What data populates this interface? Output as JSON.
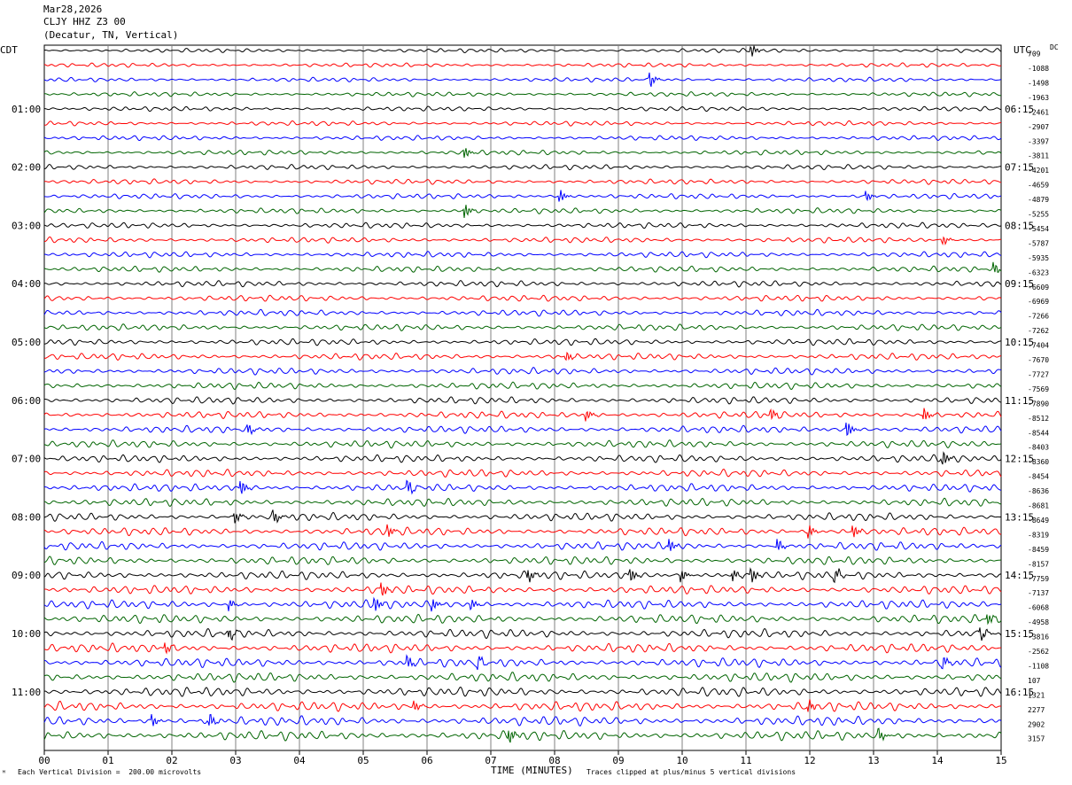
{
  "header": {
    "date": "Mar28,2026",
    "station": "CLJY HHZ Z3 00",
    "location": "(Decatur, TN, Vertical)"
  },
  "left_tz": "CDT",
  "right_tz": "UTC",
  "dc_label": "DC",
  "footer": {
    "scale_note": "Each Vertical Division =  200.00 microvolts",
    "clip_note": "Traces clipped at plus/minus 5 vertical divisions",
    "corner_mark": "ᴹ"
  },
  "colors": {
    "cycle": [
      "#000000",
      "#ff0000",
      "#0000ff",
      "#006400"
    ],
    "grid": "#808080"
  },
  "chart_data": {
    "type": "line",
    "xlabel": "TIME (MINUTES)",
    "x_ticks": [
      "00",
      "01",
      "02",
      "03",
      "04",
      "05",
      "06",
      "07",
      "08",
      "09",
      "10",
      "11",
      "12",
      "13",
      "14",
      "15"
    ],
    "xlim": [
      0,
      15
    ],
    "left_hour_labels": [
      "01:00",
      "02:00",
      "03:00",
      "04:00",
      "05:00",
      "06:00",
      "07:00",
      "08:00",
      "09:00",
      "10:00",
      "11:00"
    ],
    "right_hour_labels": [
      "06:15",
      "07:15",
      "08:15",
      "09:15",
      "10:15",
      "11:15",
      "12:15",
      "13:15",
      "14:15",
      "15:15",
      "16:15"
    ],
    "hour_label_rows": [
      4,
      8,
      12,
      16,
      20,
      24,
      28,
      32,
      36,
      40,
      44
    ],
    "dc_offsets": [
      "709",
      "-1088",
      "-1498",
      "-1963",
      "-2461",
      "-2907",
      "-3397",
      "-3811",
      "-4201",
      "-4659",
      "-4879",
      "-5255",
      "-5454",
      "-5787",
      "-5935",
      "-6323",
      "-6609",
      "-6969",
      "-7266",
      "-7262",
      "-7404",
      "-7670",
      "-7727",
      "-7569",
      "-7890",
      "-8512",
      "-8544",
      "-8403",
      "-8360",
      "-8454",
      "-8636",
      "-8681",
      "-8649",
      "-8319",
      "-8459",
      "-8157",
      "-7759",
      "-7137",
      "-6068",
      "-4958",
      "-3816",
      "-2562",
      "-1108",
      "107",
      "1321",
      "2277",
      "2902",
      "3157"
    ],
    "events": [
      {
        "row": 0,
        "minute": 11.1,
        "amp": 1.5
      },
      {
        "row": 2,
        "minute": 9.5,
        "amp": 2
      },
      {
        "row": 7,
        "minute": 6.6,
        "amp": 1.5
      },
      {
        "row": 10,
        "minute": 8.1,
        "amp": 1.5
      },
      {
        "row": 10,
        "minute": 12.9,
        "amp": 1.2
      },
      {
        "row": 11,
        "minute": 6.6,
        "amp": 2
      },
      {
        "row": 13,
        "minute": 14.1,
        "amp": 1.2
      },
      {
        "row": 15,
        "minute": 14.9,
        "amp": 1.5
      },
      {
        "row": 21,
        "minute": 8.2,
        "amp": 1.2
      },
      {
        "row": 25,
        "minute": 8.5,
        "amp": 1.5
      },
      {
        "row": 25,
        "minute": 11.4,
        "amp": 1.5
      },
      {
        "row": 25,
        "minute": 13.8,
        "amp": 1.8
      },
      {
        "row": 26,
        "minute": 3.2,
        "amp": 1.5
      },
      {
        "row": 26,
        "minute": 12.6,
        "amp": 2
      },
      {
        "row": 28,
        "minute": 14.1,
        "amp": 2
      },
      {
        "row": 30,
        "minute": 3.1,
        "amp": 1.8
      },
      {
        "row": 30,
        "minute": 5.7,
        "amp": 2
      },
      {
        "row": 32,
        "minute": 3.0,
        "amp": 1.5
      },
      {
        "row": 32,
        "minute": 3.6,
        "amp": 2
      },
      {
        "row": 33,
        "minute": 5.4,
        "amp": 1.5
      },
      {
        "row": 33,
        "minute": 12.0,
        "amp": 1.5
      },
      {
        "row": 33,
        "minute": 12.7,
        "amp": 1.5
      },
      {
        "row": 34,
        "minute": 9.8,
        "amp": 2
      },
      {
        "row": 34,
        "minute": 11.5,
        "amp": 1.8
      },
      {
        "row": 36,
        "minute": 7.6,
        "amp": 1.8
      },
      {
        "row": 36,
        "minute": 9.2,
        "amp": 1.8
      },
      {
        "row": 36,
        "minute": 10.0,
        "amp": 1.5
      },
      {
        "row": 36,
        "minute": 10.8,
        "amp": 1.5
      },
      {
        "row": 36,
        "minute": 11.1,
        "amp": 2
      },
      {
        "row": 36,
        "minute": 12.4,
        "amp": 1.8
      },
      {
        "row": 37,
        "minute": 5.3,
        "amp": 1.8
      },
      {
        "row": 38,
        "minute": 2.9,
        "amp": 1.5
      },
      {
        "row": 38,
        "minute": 5.2,
        "amp": 1.8
      },
      {
        "row": 38,
        "minute": 6.1,
        "amp": 1.5
      },
      {
        "row": 38,
        "minute": 6.7,
        "amp": 1.5
      },
      {
        "row": 39,
        "minute": 14.8,
        "amp": 1.5
      },
      {
        "row": 40,
        "minute": 2.9,
        "amp": 1.5
      },
      {
        "row": 40,
        "minute": 14.7,
        "amp": 1.5
      },
      {
        "row": 41,
        "minute": 1.9,
        "amp": 1.5
      },
      {
        "row": 42,
        "minute": 5.7,
        "amp": 1.8
      },
      {
        "row": 42,
        "minute": 6.8,
        "amp": 1.5
      },
      {
        "row": 42,
        "minute": 14.1,
        "amp": 1.5
      },
      {
        "row": 45,
        "minute": 5.8,
        "amp": 1.5
      },
      {
        "row": 45,
        "minute": 12.0,
        "amp": 1.5
      },
      {
        "row": 46,
        "minute": 1.7,
        "amp": 1.5
      },
      {
        "row": 46,
        "minute": 2.6,
        "amp": 1.8
      },
      {
        "row": 47,
        "minute": 7.3,
        "amp": 2
      },
      {
        "row": 47,
        "minute": 13.1,
        "amp": 1.5
      }
    ]
  }
}
